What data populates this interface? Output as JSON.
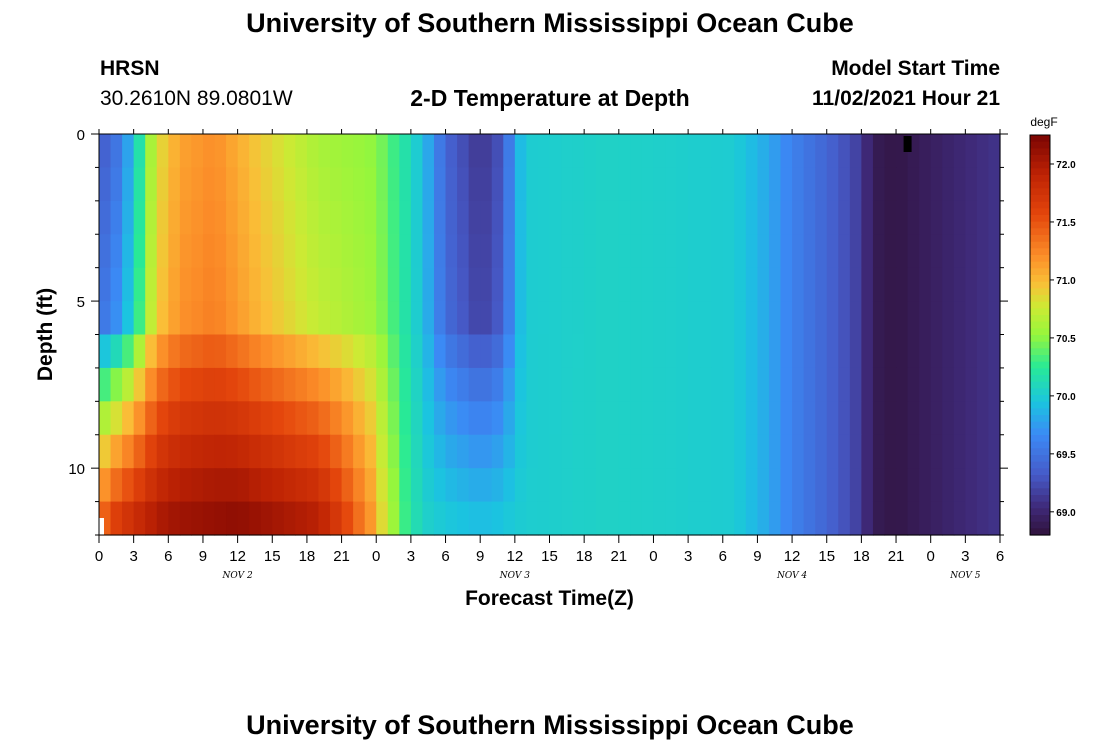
{
  "header": {
    "title": "University of Southern Mississippi Ocean Cube",
    "station_name": "HRSN",
    "station_coords": "30.2610N  89.0801W",
    "plot_title": "2-D Temperature at Depth",
    "model_start_label": "Model Start Time",
    "model_start_value": "11/02/2021 Hour 21"
  },
  "footer": {
    "title": "University of Southern Mississippi Ocean Cube"
  },
  "chart_data": {
    "type": "heatmap",
    "title": "2-D Temperature at Depth",
    "xlabel": "Forecast Time(Z)",
    "ylabel": "Depth (ft)",
    "x_tick_labels": [
      "0",
      "3",
      "6",
      "9",
      "12",
      "15",
      "18",
      "21",
      "0",
      "3",
      "6",
      "9",
      "12",
      "15",
      "18",
      "21",
      "0",
      "3",
      "6",
      "9",
      "12",
      "15",
      "18",
      "21",
      "0",
      "3",
      "6"
    ],
    "day_labels": [
      {
        "label": "NOV 2",
        "hour": 12
      },
      {
        "label": "NOV 3",
        "hour": 36
      },
      {
        "label": "NOV 4",
        "hour": 60
      },
      {
        "label": "NOV 5",
        "hour": 75
      }
    ],
    "y_tick_labels": [
      "0",
      "5",
      "10"
    ],
    "y_ticks": [
      0,
      5,
      10
    ],
    "xlim_hours": [
      0,
      78
    ],
    "ylim_depth_ft": [
      0,
      12
    ],
    "time_steps": 78,
    "depth_levels": 12,
    "colorbar": {
      "unit": "degF",
      "min": 68.8,
      "max": 72.25,
      "ticks": [
        "69.0",
        "69.5",
        "70.0",
        "70.5",
        "71.0",
        "71.5",
        "72.0"
      ],
      "tick_values": [
        69.0,
        69.5,
        70.0,
        70.5,
        71.0,
        71.5,
        72.0
      ]
    },
    "temperature_profile": {
      "description_units": "degF",
      "surface_hours": [
        0,
        1.5,
        3,
        4,
        5,
        7,
        10,
        14,
        19,
        24,
        27,
        28.5,
        30,
        33,
        35,
        36,
        37,
        44,
        55,
        58,
        60,
        63,
        66,
        67,
        69,
        74,
        78
      ],
      "surface_temps": [
        69.3,
        69.5,
        69.9,
        70.4,
        70.8,
        71.1,
        71.2,
        70.9,
        70.6,
        70.5,
        70.1,
        69.8,
        69.4,
        69.1,
        69.3,
        69.8,
        70.0,
        70.05,
        70.0,
        69.8,
        69.6,
        69.4,
        69.15,
        68.9,
        68.85,
        69.0,
        69.1
      ],
      "bottom_hours": [
        0,
        1,
        3,
        6,
        12,
        19,
        21,
        23.5,
        25,
        26.5,
        28,
        30,
        33,
        36,
        44,
        55,
        58,
        60,
        63,
        66,
        67,
        69,
        74,
        78
      ],
      "bottom_temps": [
        71.4,
        71.7,
        71.9,
        72.1,
        72.2,
        72.0,
        71.7,
        71.2,
        70.7,
        70.3,
        70.05,
        70.0,
        69.95,
        70.0,
        70.05,
        70.0,
        69.8,
        69.6,
        69.4,
        69.15,
        68.9,
        68.85,
        69.0,
        69.1
      ],
      "missing_cells": [
        {
          "hour": 70,
          "depth_level": 0
        }
      ]
    }
  }
}
